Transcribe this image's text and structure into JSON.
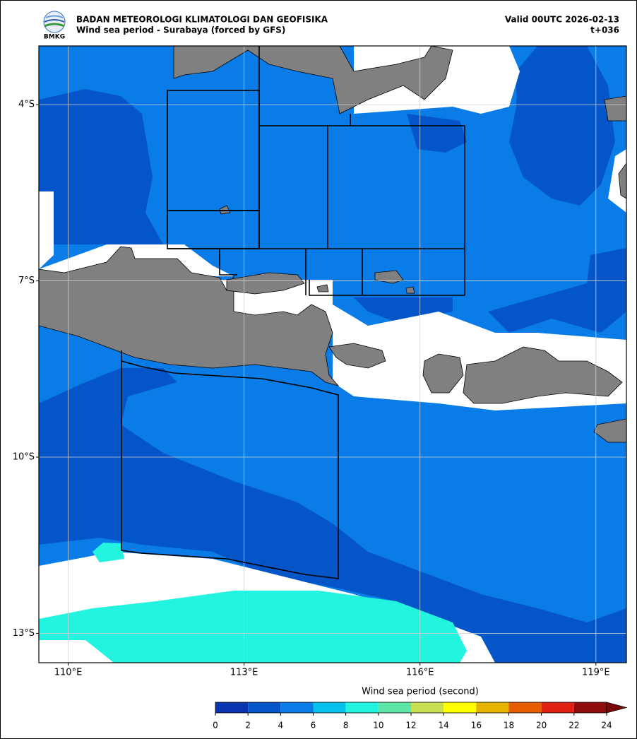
{
  "header": {
    "agency": "BADAN METEOROLOGI KLIMATOLOGI DAN GEOFISIKA",
    "title": "Wind sea period - Surabaya (forced by GFS)",
    "valid": "Valid 00UTC 2026-02-13",
    "lead": "t+036",
    "logo_text": "BMKG"
  },
  "map": {
    "xlim": [
      109.5,
      119.52
    ],
    "ylim": [
      -13.5,
      -3.0
    ],
    "lon_ticks": [
      {
        "value": 110,
        "label": "110°E"
      },
      {
        "value": 113,
        "label": "113°E"
      },
      {
        "value": 116,
        "label": "116°E"
      },
      {
        "value": 119,
        "label": "119°E"
      }
    ],
    "lat_ticks": [
      {
        "value": -4,
        "label": "4°S"
      },
      {
        "value": -7,
        "label": "7°S"
      },
      {
        "value": -10,
        "label": "10°S"
      },
      {
        "value": -13,
        "label": "13°S"
      }
    ],
    "grid": true,
    "colorbar": {
      "label": "Wind sea period (second)",
      "range": [
        0,
        24
      ],
      "ticks": [
        0,
        2,
        4,
        6,
        8,
        10,
        12,
        14,
        16,
        18,
        20,
        22,
        24
      ],
      "colors": [
        "#0a35b0",
        "#0455c8",
        "#0a7ce8",
        "#08c0ec",
        "#22f4e0",
        "#5ee6a8",
        "#c8e050",
        "#ffff00",
        "#e6b400",
        "#e85c00",
        "#e02010",
        "#900c0c"
      ],
      "extend_color": "#7a0808"
    }
  }
}
